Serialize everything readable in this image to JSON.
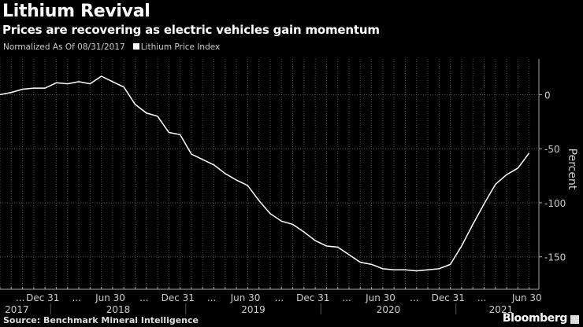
{
  "chart_data": {
    "type": "line",
    "title": "Lithium Revival",
    "subtitle": "Prices are recovering as electric vehicles gain momentum",
    "note": "Normalized As Of 08/31/2017",
    "legend": [
      "Lithium Price Index"
    ],
    "legend_placement": "top-left",
    "ylabel": "Percent",
    "ylim": [
      -180,
      33
    ],
    "yticks": [
      0,
      -50,
      -100,
      -150
    ],
    "ytick_labels": [
      "0",
      "-50",
      "-100",
      "-150"
    ],
    "x_start": "2017-08",
    "x_frequency": "monthly",
    "xtick_labels": [
      "...",
      "Dec 31",
      "...",
      "Jun 30",
      "...",
      "Dec 31",
      "...",
      "Jun 30",
      "...",
      "Dec 31",
      "...",
      "Jun 30",
      "...",
      "Dec 31",
      "...",
      "Jun 30"
    ],
    "xtick_months": [
      2,
      4,
      7,
      10,
      13,
      16,
      19,
      22,
      25,
      28,
      31,
      34,
      37,
      40,
      43,
      47
    ],
    "year_labels": [
      "2017",
      "2018",
      "2019",
      "2020",
      "2021"
    ],
    "year_centers": [
      1.5,
      10.5,
      22.5,
      34.5,
      44.5
    ],
    "year_separators": [
      4.5,
      16.5,
      28.5,
      40.5
    ],
    "grid": true,
    "series": [
      {
        "name": "Lithium Price Index",
        "color": "#ffffff",
        "values": [
          0,
          2,
          5,
          6,
          6,
          11,
          10,
          12,
          10,
          17,
          12,
          7,
          -9,
          -17,
          -20,
          -35,
          -37,
          -55,
          -60,
          -65,
          -73,
          -79,
          -84,
          -98,
          -110,
          -117,
          -120,
          -127,
          -135,
          -140,
          -141,
          -148,
          -155,
          -157,
          -161,
          -162,
          -162,
          -163,
          -162,
          -161,
          -157,
          -140,
          -120,
          -101,
          -83,
          -74,
          -68,
          -54
        ]
      }
    ]
  },
  "footer": {
    "source": "Source: Benchmark Mineral Intelligence",
    "brand": "Bloomberg"
  }
}
